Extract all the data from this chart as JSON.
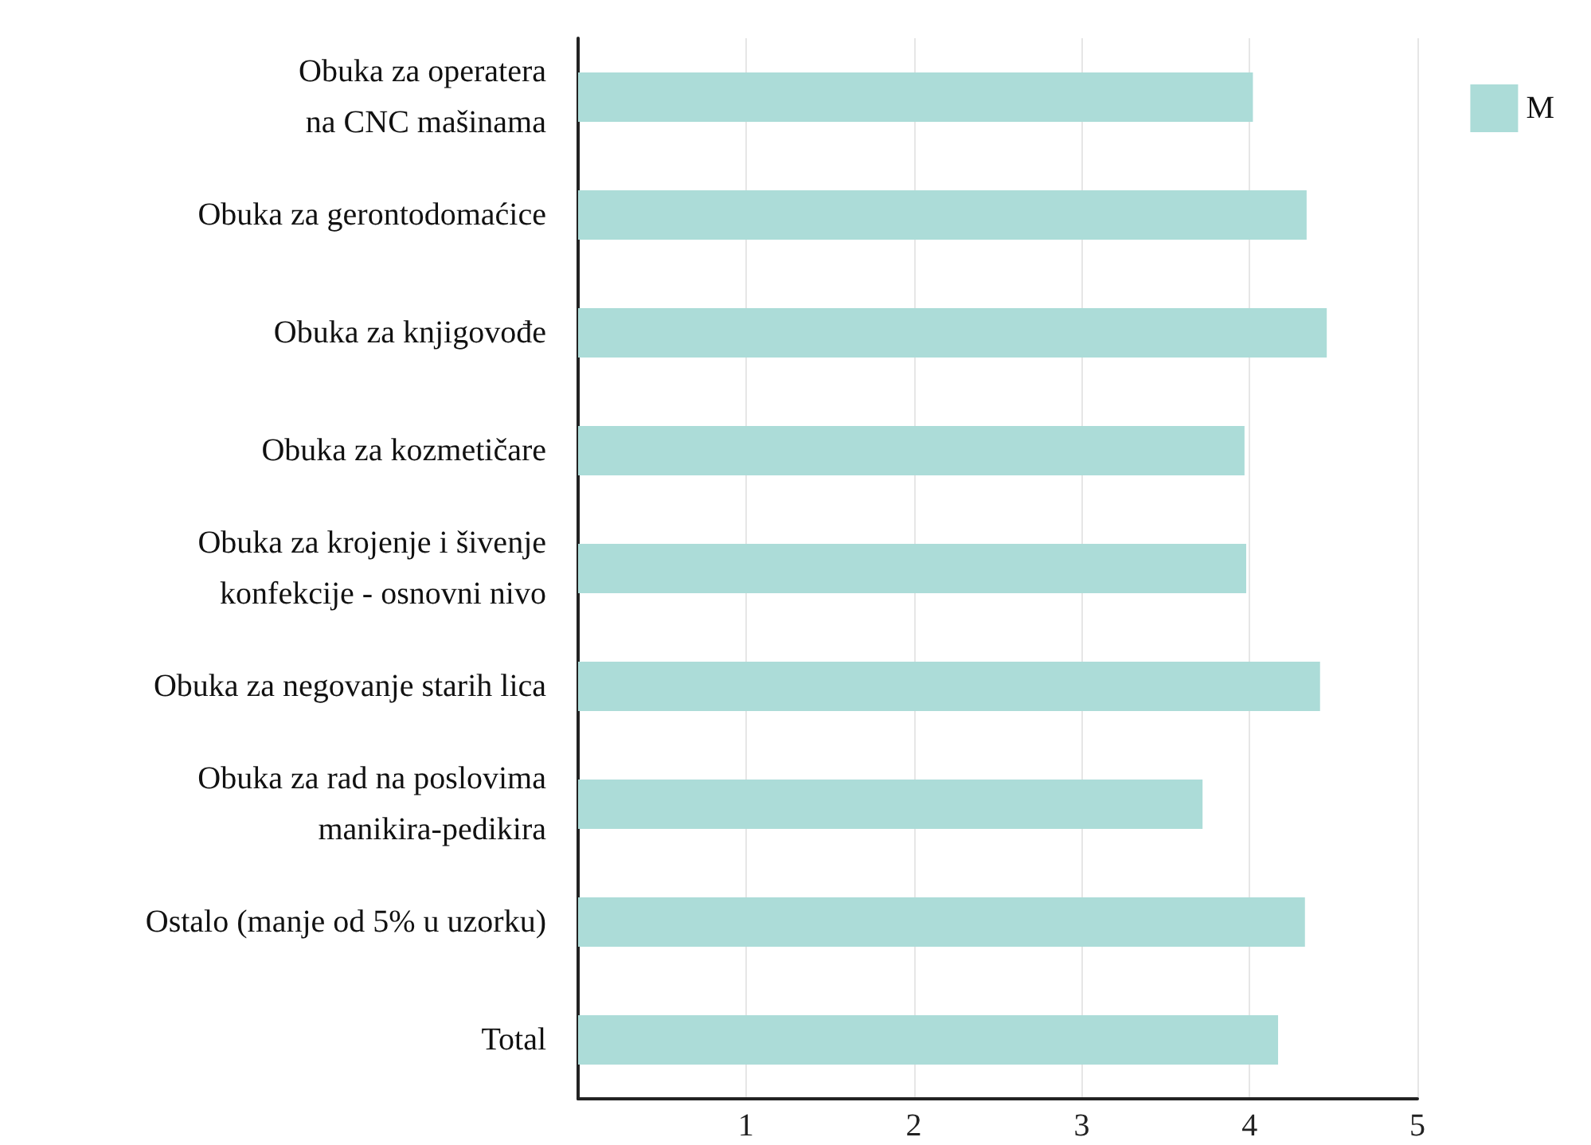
{
  "chart_data": {
    "type": "bar",
    "orientation": "horizontal",
    "categories": [
      "Obuka za operatera\nna CNC mašinama",
      "Obuka za gerontodomaćice",
      "Obuka za knjigovođe",
      "Obuka za kozmetičare",
      "Obuka za krojenje i šivenje\nkonfekcije - osnovni nivo",
      "Obuka za negovanje starih lica",
      "Obuka za rad na poslovima\nmanikira-pedikira",
      "Ostalo (manje od 5% u uzorku)",
      "Total"
    ],
    "series": [
      {
        "name": "M",
        "color": "#acdcd8",
        "values": [
          4.02,
          4.34,
          4.46,
          3.97,
          3.98,
          4.42,
          3.72,
          4.33,
          4.17
        ]
      }
    ],
    "xlim": [
      0,
      5
    ],
    "xticks": [
      1,
      2,
      3,
      4,
      5
    ],
    "grid": "x",
    "legend": "top right"
  }
}
